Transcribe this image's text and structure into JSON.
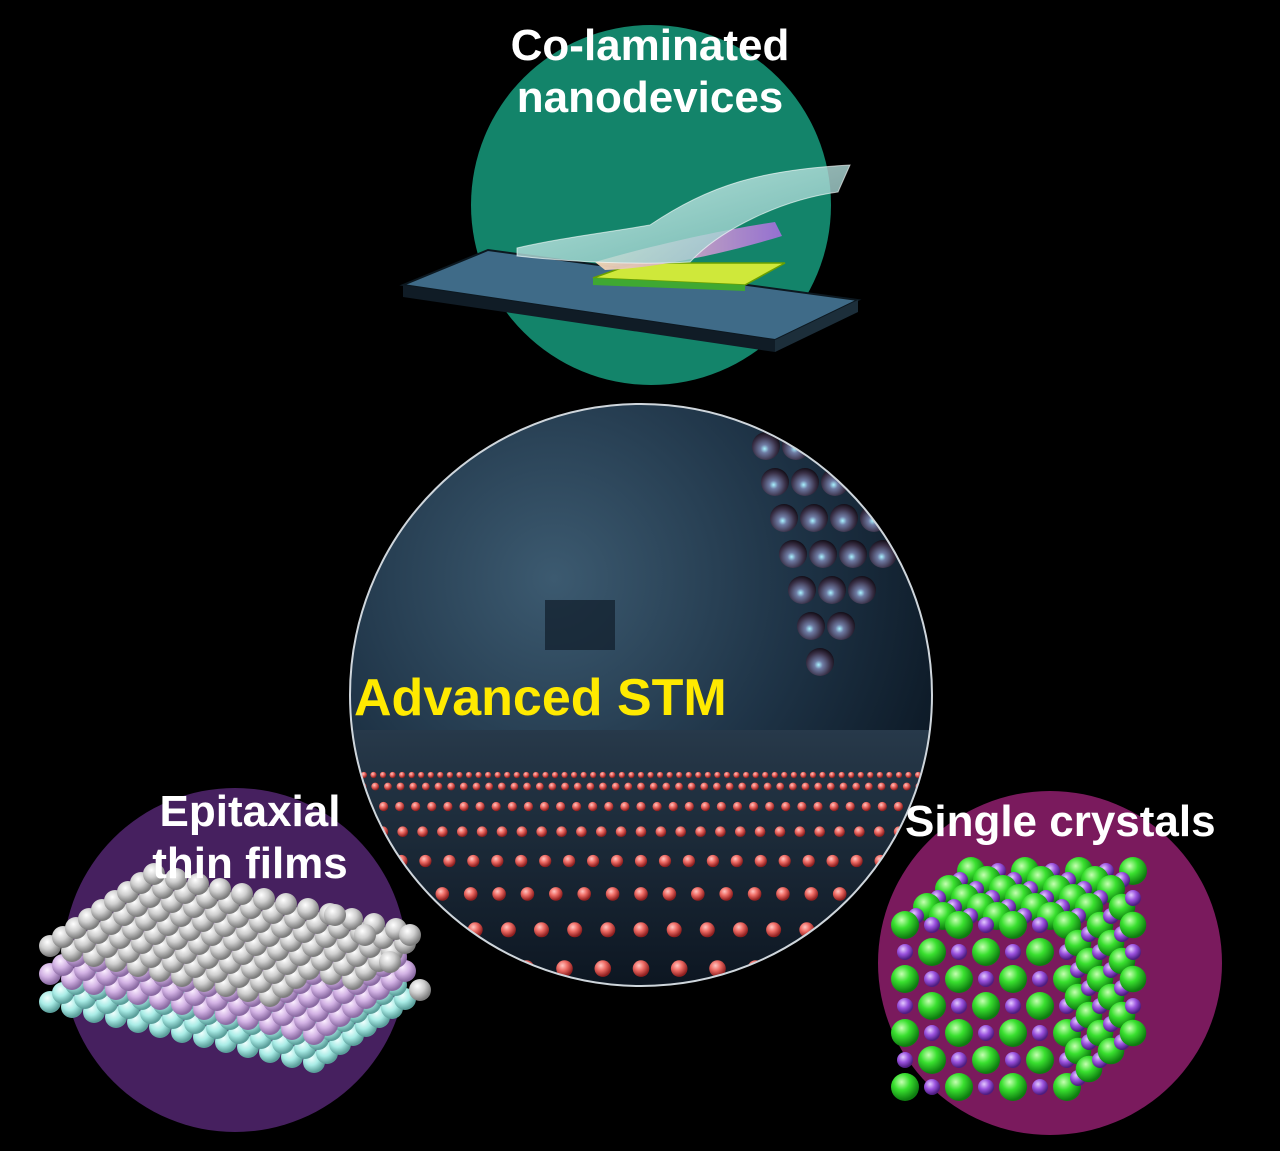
{
  "labels": {
    "top": [
      "Co-laminated",
      "nanodevices"
    ],
    "center": "Advanced STM",
    "left": [
      "Epitaxial",
      "thin films"
    ],
    "right": "Single crystals"
  },
  "colors": {
    "background": "#000000",
    "top_circle": "#13846a",
    "left_circle": "#46205f",
    "right_circle": "#7a1a5d",
    "center_label": "#ffea00",
    "text": "#ffffff"
  },
  "icons": {
    "top": "layered-device-icon",
    "center": "stm-tip-icon",
    "left": "layered-thin-film-icon",
    "right": "cubic-crystal-lattice-icon"
  }
}
